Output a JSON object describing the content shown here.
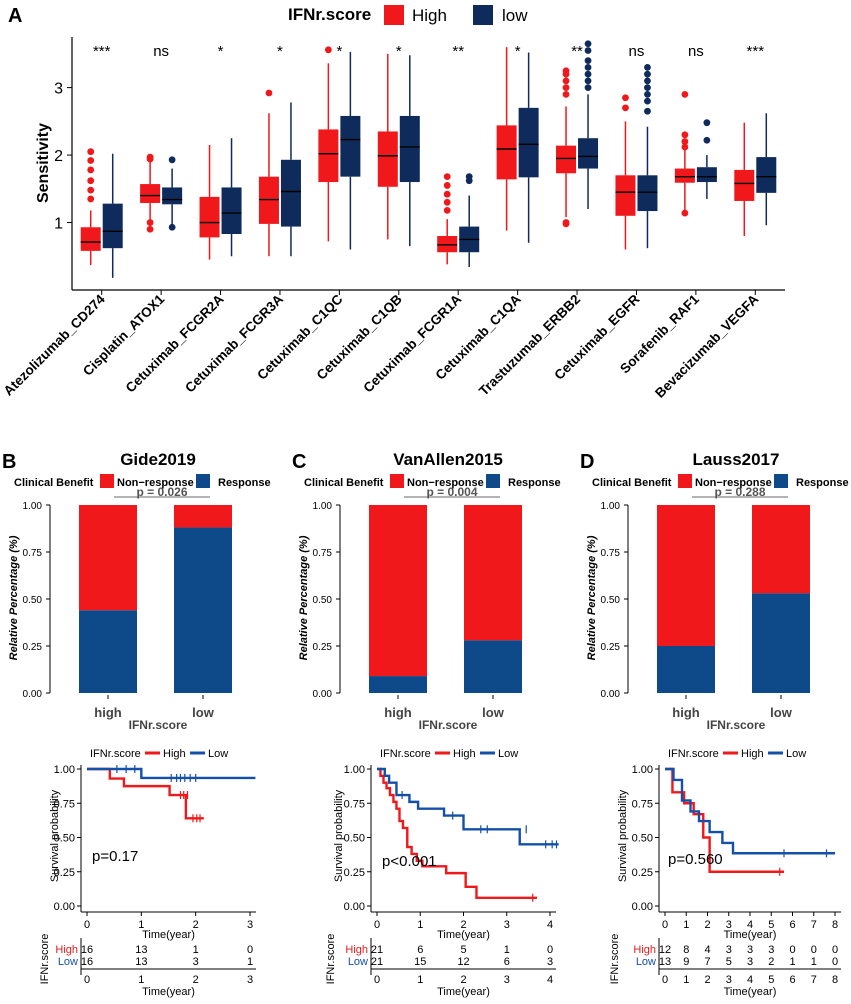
{
  "colors": {
    "high": "#F0181A",
    "low": "#0E2B5C",
    "response": "#0E4A8A",
    "nonresponse": "#F0181A",
    "km_low": "#1550A8",
    "risk_high": "#E8191C",
    "risk_low": "#1550A8",
    "grey": "#888888"
  },
  "panel_a": {
    "label": "A",
    "legend": {
      "title": "IFNr.score",
      "high": "High",
      "low": "low"
    },
    "chart_data": {
      "type": "box",
      "ylabel": "Sensitivity",
      "ylim": [
        0.0,
        3.75
      ],
      "yticks": [
        "1",
        "2",
        "3"
      ],
      "series_names": [
        "High",
        "low"
      ],
      "categories": [
        "Atezolizumab_CD274",
        "Cisplatin_ATOX1",
        "Cetuximab_FCGR2A",
        "Cetuximab_FCGR3A",
        "Cetuximab_C1QC",
        "Cetuximab_C1QB",
        "Cetuximab_FCGR1A",
        "Cetuximab_C1QA",
        "Trastuzumab_ERBB2",
        "Cetuximab_EGFR",
        "Sorafenib_RAF1",
        "Bevacizumab_VEGFA"
      ],
      "significance": [
        "***",
        "ns",
        "*",
        "*",
        "*",
        "*",
        "**",
        "*",
        "**",
        "ns",
        "ns",
        "***"
      ],
      "boxes": [
        {
          "high": {
            "min": 0.37,
            "q1": 0.58,
            "median": 0.71,
            "q3": 0.93,
            "max": 1.18,
            "out": [
              1.35,
              1.48,
              1.62,
              1.78,
              1.92,
              2.05
            ]
          },
          "low": {
            "min": 0.18,
            "q1": 0.62,
            "median": 0.87,
            "q3": 1.28,
            "max": 2.02,
            "out": []
          }
        },
        {
          "high": {
            "min": 0.88,
            "q1": 1.29,
            "median": 1.4,
            "q3": 1.57,
            "max": 1.94,
            "out": [
              0.9,
              1.0,
              1.94,
              1.97
            ]
          },
          "low": {
            "min": 0.95,
            "q1": 1.27,
            "median": 1.34,
            "q3": 1.52,
            "max": 1.8,
            "out": [
              0.93,
              1.93
            ]
          }
        },
        {
          "high": {
            "min": 0.45,
            "q1": 0.78,
            "median": 1.0,
            "q3": 1.38,
            "max": 2.15,
            "out": []
          },
          "low": {
            "min": 0.5,
            "q1": 0.83,
            "median": 1.14,
            "q3": 1.52,
            "max": 2.25,
            "out": []
          }
        },
        {
          "high": {
            "min": 0.5,
            "q1": 0.98,
            "median": 1.34,
            "q3": 1.68,
            "max": 2.62,
            "out": [
              2.92
            ]
          },
          "low": {
            "min": 0.5,
            "q1": 0.94,
            "median": 1.46,
            "q3": 1.93,
            "max": 2.78,
            "out": []
          }
        },
        {
          "high": {
            "min": 0.72,
            "q1": 1.6,
            "median": 2.02,
            "q3": 2.38,
            "max": 3.36,
            "out": [
              3.56
            ]
          },
          "low": {
            "min": 0.6,
            "q1": 1.68,
            "median": 2.23,
            "q3": 2.58,
            "max": 3.53,
            "out": []
          }
        },
        {
          "high": {
            "min": 0.75,
            "q1": 1.53,
            "median": 1.99,
            "q3": 2.35,
            "max": 3.5,
            "out": []
          },
          "low": {
            "min": 0.65,
            "q1": 1.6,
            "median": 2.12,
            "q3": 2.58,
            "max": 3.48,
            "out": []
          }
        },
        {
          "high": {
            "min": 0.38,
            "q1": 0.56,
            "median": 0.67,
            "q3": 0.8,
            "max": 1.05,
            "out": [
              1.18,
              1.3,
              1.42,
              1.55,
              1.68
            ]
          },
          "low": {
            "min": 0.34,
            "q1": 0.56,
            "median": 0.75,
            "q3": 0.94,
            "max": 1.4,
            "out": [
              1.62,
              1.68
            ]
          }
        },
        {
          "high": {
            "min": 0.88,
            "q1": 1.64,
            "median": 2.09,
            "q3": 2.44,
            "max": 3.6,
            "out": []
          },
          "low": {
            "min": 0.7,
            "q1": 1.67,
            "median": 2.16,
            "q3": 2.7,
            "max": 3.52,
            "out": []
          }
        },
        {
          "high": {
            "min": 1.08,
            "q1": 1.73,
            "median": 1.95,
            "q3": 2.14,
            "max": 2.72,
            "out": [
              1.0,
              0.98,
              2.9,
              3.0,
              3.1,
              3.2,
              3.25
            ]
          },
          "low": {
            "min": 1.2,
            "q1": 1.8,
            "median": 1.98,
            "q3": 2.25,
            "max": 2.9,
            "out": [
              3.0,
              3.1,
              3.2,
              3.3,
              3.4,
              3.55,
              3.65
            ]
          }
        },
        {
          "high": {
            "min": 0.6,
            "q1": 1.1,
            "median": 1.45,
            "q3": 1.7,
            "max": 2.5,
            "out": [
              2.7,
              2.85
            ]
          },
          "low": {
            "min": 0.62,
            "q1": 1.17,
            "median": 1.45,
            "q3": 1.7,
            "max": 2.42,
            "out": [
              2.65,
              2.8,
              2.9,
              3.0,
              3.1,
              3.2,
              3.3
            ]
          }
        },
        {
          "high": {
            "min": 1.15,
            "q1": 1.59,
            "median": 1.68,
            "q3": 1.8,
            "max": 2.08,
            "out": [
              1.14,
              2.12,
              2.2,
              2.3,
              2.9
            ]
          },
          "low": {
            "min": 1.35,
            "q1": 1.6,
            "median": 1.68,
            "q3": 1.82,
            "max": 2.0,
            "out": [
              2.22,
              2.48
            ]
          }
        },
        {
          "high": {
            "min": 0.8,
            "q1": 1.32,
            "median": 1.58,
            "q3": 1.78,
            "max": 2.48,
            "out": []
          },
          "low": {
            "min": 0.96,
            "q1": 1.44,
            "median": 1.68,
            "q3": 1.97,
            "max": 2.62,
            "out": []
          }
        }
      ]
    }
  },
  "panels_bcd": [
    {
      "label": "B",
      "bar": {
        "title": "Gide2019",
        "legend_title": "Clinical Benefit",
        "legend_nonresponse": "Non−response",
        "legend_response": "Response",
        "pvalue": "p = 0.026",
        "ylabel": "Relative Percentage (%)",
        "xlabel": "IFNr.score",
        "yticks": [
          "0.00",
          "0.25",
          "0.50",
          "0.75",
          "1.00"
        ],
        "chart_data": {
          "type": "stacked-bar",
          "categories": [
            "high",
            "low"
          ],
          "response": [
            0.44,
            0.88
          ],
          "nonresponse": [
            0.56,
            0.12
          ]
        }
      },
      "km": {
        "legend_title": "IFNr.score",
        "legend_high": "High",
        "legend_low": "Low",
        "ylabel": "Survival probability",
        "pvalue": "p=0.17",
        "yticks": [
          "0.00",
          "0.25",
          "0.50",
          "0.75",
          "1.00"
        ],
        "xticks": [
          "0",
          "1",
          "2",
          "3"
        ],
        "chart_data": {
          "type": "line",
          "xlim": [
            0,
            3
          ],
          "ylim": [
            0,
            1
          ],
          "series": [
            {
              "name": "High",
              "steps": [
                [
                  0,
                  1.0
                ],
                [
                  0.42,
                  0.93
                ],
                [
                  0.68,
                  0.875
                ],
                [
                  1.52,
                  0.81
                ],
                [
                  1.82,
                  0.64
                ],
                [
                  2.15,
                  0.64
                ]
              ],
              "censors": [
                [
                  1.72,
                  0.81
                ],
                [
                  1.78,
                  0.81
                ],
                [
                  1.85,
                  0.81
                ],
                [
                  1.95,
                  0.64
                ],
                [
                  2.02,
                  0.64
                ],
                [
                  2.08,
                  0.64
                ]
              ]
            },
            {
              "name": "Low",
              "steps": [
                [
                  0,
                  1.0
                ],
                [
                  1.0,
                  0.935
                ],
                [
                  3.1,
                  0.935
                ]
              ],
              "censors": [
                [
                  0.55,
                  1.0
                ],
                [
                  0.72,
                  1.0
                ],
                [
                  0.88,
                  1.0
                ],
                [
                  1.55,
                  0.935
                ],
                [
                  1.65,
                  0.935
                ],
                [
                  1.72,
                  0.935
                ],
                [
                  1.8,
                  0.935
                ],
                [
                  1.9,
                  0.935
                ],
                [
                  2.0,
                  0.935
                ]
              ]
            }
          ]
        }
      },
      "risk": {
        "ylabel": "IFNr.score",
        "xlabel": "Time(year)",
        "row_high": "High",
        "row_low": "Low",
        "xticks": [
          "0",
          "1",
          "2",
          "3"
        ],
        "high": [
          "16",
          "13",
          "1",
          "0"
        ],
        "low": [
          "16",
          "13",
          "3",
          "1"
        ]
      }
    },
    {
      "label": "C",
      "bar": {
        "title": "VanAllen2015",
        "legend_title": "Clinical Benefit",
        "legend_nonresponse": "Non−response",
        "legend_response": "Response",
        "pvalue": "p = 0.004",
        "ylabel": "Relative Percentage (%)",
        "xlabel": "IFNr.score",
        "yticks": [
          "0.00",
          "0.25",
          "0.50",
          "0.75",
          "1.00"
        ],
        "chart_data": {
          "type": "stacked-bar",
          "categories": [
            "high",
            "low"
          ],
          "response": [
            0.09,
            0.28
          ],
          "nonresponse": [
            0.91,
            0.72
          ]
        }
      },
      "km": {
        "legend_title": "IFNr.score",
        "legend_high": "High",
        "legend_low": "Low",
        "ylabel": "Survival probability",
        "pvalue": "p<0.001",
        "yticks": [
          "0.00",
          "0.25",
          "0.50",
          "0.75",
          "1.00"
        ],
        "xticks": [
          "0",
          "1",
          "2",
          "3",
          "4"
        ],
        "chart_data": {
          "type": "line",
          "xlim": [
            0,
            4
          ],
          "ylim": [
            0,
            1
          ],
          "series": [
            {
              "name": "High",
              "steps": [
                [
                  0,
                  1.0
                ],
                [
                  0.08,
                  0.95
                ],
                [
                  0.15,
                  0.9
                ],
                [
                  0.22,
                  0.86
                ],
                [
                  0.3,
                  0.81
                ],
                [
                  0.38,
                  0.76
                ],
                [
                  0.45,
                  0.71
                ],
                [
                  0.52,
                  0.62
                ],
                [
                  0.6,
                  0.57
                ],
                [
                  0.7,
                  0.43
                ],
                [
                  0.8,
                  0.38
                ],
                [
                  0.92,
                  0.33
                ],
                [
                  1.05,
                  0.29
                ],
                [
                  1.6,
                  0.24
                ],
                [
                  2.05,
                  0.14
                ],
                [
                  2.3,
                  0.06
                ],
                [
                  3.7,
                  0.06
                ]
              ],
              "censors": [
                [
                  3.6,
                  0.06
                ]
              ]
            },
            {
              "name": "Low",
              "steps": [
                [
                  0,
                  1.0
                ],
                [
                  0.18,
                  0.95
                ],
                [
                  0.28,
                  0.9
                ],
                [
                  0.45,
                  0.81
                ],
                [
                  0.75,
                  0.76
                ],
                [
                  0.95,
                  0.71
                ],
                [
                  1.55,
                  0.66
                ],
                [
                  2.0,
                  0.56
                ],
                [
                  3.3,
                  0.45
                ],
                [
                  4.2,
                  0.45
                ]
              ],
              "censors": [
                [
                  0.58,
                  0.81
                ],
                [
                  1.75,
                  0.66
                ],
                [
                  2.4,
                  0.56
                ],
                [
                  2.55,
                  0.56
                ],
                [
                  3.45,
                  0.56
                ],
                [
                  3.9,
                  0.45
                ],
                [
                  4.05,
                  0.45
                ],
                [
                  4.15,
                  0.45
                ]
              ]
            }
          ]
        }
      },
      "risk": {
        "ylabel": "IFNr.score",
        "xlabel": "Time(year)",
        "row_high": "High",
        "row_low": "Low",
        "xticks": [
          "0",
          "1",
          "2",
          "3",
          "4"
        ],
        "high": [
          "21",
          "6",
          "5",
          "1",
          "0"
        ],
        "low": [
          "21",
          "15",
          "12",
          "6",
          "3"
        ]
      }
    },
    {
      "label": "D",
      "bar": {
        "title": "Lauss2017",
        "legend_title": "Clinical Benefit",
        "legend_nonresponse": "Non−response",
        "legend_response": "Response",
        "pvalue": "p = 0.288",
        "ylabel": "Relative Percentage (%)",
        "xlabel": "IFNr.score",
        "yticks": [
          "0.00",
          "0.25",
          "0.50",
          "0.75",
          "1.00"
        ],
        "chart_data": {
          "type": "stacked-bar",
          "categories": [
            "high",
            "low"
          ],
          "response": [
            0.25,
            0.53
          ],
          "nonresponse": [
            0.75,
            0.47
          ]
        }
      },
      "km": {
        "legend_title": "IFNr.score",
        "legend_high": "High",
        "legend_low": "Low",
        "ylabel": "Survival probability",
        "pvalue": "p=0.560",
        "yticks": [
          "0.00",
          "0.25",
          "0.50",
          "0.75",
          "1.00"
        ],
        "xticks": [
          "0",
          "1",
          "2",
          "3",
          "4",
          "5",
          "6",
          "7",
          "8"
        ],
        "chart_data": {
          "type": "line",
          "xlim": [
            0,
            8
          ],
          "ylim": [
            0,
            1
          ],
          "series": [
            {
              "name": "High",
              "steps": [
                [
                  0,
                  1.0
                ],
                [
                  0.35,
                  0.83
                ],
                [
                  0.9,
                  0.75
                ],
                [
                  1.35,
                  0.67
                ],
                [
                  1.8,
                  0.5
                ],
                [
                  2.1,
                  0.25
                ],
                [
                  5.6,
                  0.25
                ]
              ],
              "censors": [
                [
                  5.4,
                  0.25
                ]
              ]
            },
            {
              "name": "Low",
              "steps": [
                [
                  0,
                  1.0
                ],
                [
                  0.4,
                  0.92
                ],
                [
                  0.8,
                  0.77
                ],
                [
                  1.2,
                  0.69
                ],
                [
                  1.6,
                  0.62
                ],
                [
                  2.1,
                  0.54
                ],
                [
                  2.7,
                  0.46
                ],
                [
                  3.2,
                  0.385
                ],
                [
                  8.0,
                  0.385
                ]
              ],
              "censors": [
                [
                  5.6,
                  0.385
                ],
                [
                  7.6,
                  0.385
                ]
              ]
            }
          ]
        }
      },
      "risk": {
        "ylabel": "IFNr.score",
        "xlabel": "Time(year)",
        "row_high": "High",
        "row_low": "Low",
        "xticks": [
          "0",
          "1",
          "2",
          "3",
          "4",
          "5",
          "6",
          "7",
          "8"
        ],
        "high": [
          "12",
          "8",
          "4",
          "3",
          "3",
          "3",
          "0",
          "0",
          "0"
        ],
        "low": [
          "13",
          "9",
          "7",
          "5",
          "3",
          "2",
          "1",
          "1",
          "0"
        ]
      }
    }
  ]
}
